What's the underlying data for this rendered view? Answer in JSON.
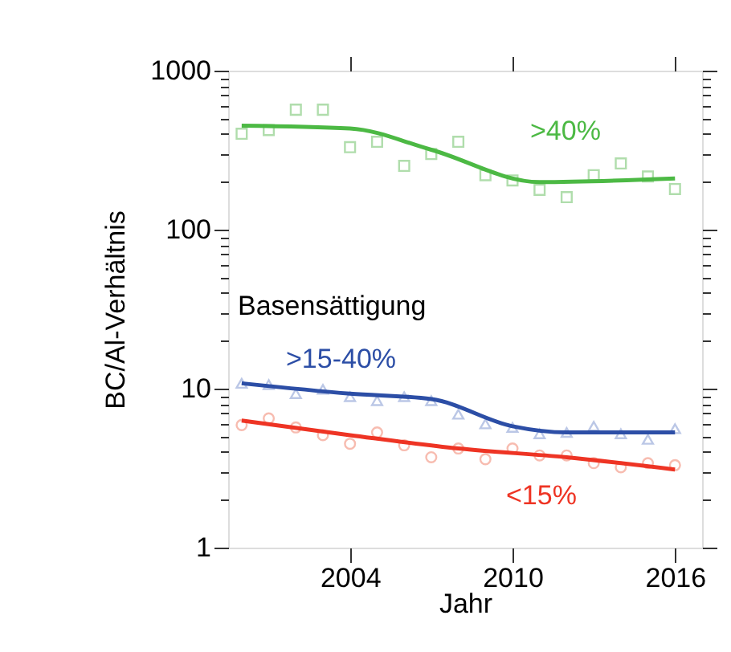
{
  "chart_data": {
    "type": "scatter",
    "xlabel": "Jahr",
    "ylabel": "BC/Al-Verhältnis",
    "legend_title": "Basensättigung",
    "log": "y",
    "grid": false,
    "x": [
      2000,
      2001,
      2002,
      2003,
      2004,
      2005,
      2006,
      2007,
      2008,
      2009,
      2010,
      2011,
      2012,
      2013,
      2014,
      2015,
      2016
    ],
    "xlim": [
      1999.5,
      2017
    ],
    "xticks": [
      2004,
      2010,
      2016
    ],
    "ylim": [
      1,
      1000
    ],
    "yticks": [
      1,
      {
        "value": 2,
        "label": null
      },
      {
        "value": 3,
        "label": null
      },
      {
        "value": 4,
        "label": null
      },
      {
        "value": 5,
        "label": null
      },
      {
        "value": 6,
        "label": null
      },
      {
        "value": 7,
        "label": null
      },
      {
        "value": 8,
        "label": null
      },
      {
        "value": 9,
        "label": null
      },
      10,
      {
        "value": 20,
        "label": null
      },
      {
        "value": 30,
        "label": null
      },
      {
        "value": 40,
        "label": null
      },
      {
        "value": 50,
        "label": null
      },
      {
        "value": 60,
        "label": null
      },
      {
        "value": 70,
        "label": null
      },
      {
        "value": 80,
        "label": null
      },
      {
        "value": 90,
        "label": null
      },
      100,
      {
        "value": 200,
        "label": null
      },
      {
        "value": 300,
        "label": null
      },
      {
        "value": 400,
        "label": null
      },
      {
        "value": 500,
        "label": null
      },
      {
        "value": 600,
        "label": null
      },
      {
        "value": 700,
        "label": null
      },
      {
        "value": 800,
        "label": null
      },
      {
        "value": 900,
        "label": null
      },
      1000
    ],
    "series": [
      {
        "name": ">40%",
        "color": "#8fd08a",
        "marker": "square",
        "values": [
          401,
          423,
          568,
          568,
          330,
          357,
          252,
          299,
          357,
          220,
          204,
          178,
          160,
          220,
          261,
          216,
          180
        ]
      },
      {
        "name": ">15-40%",
        "color": "#9fb0dc",
        "marker": "triangle",
        "values": [
          10.8,
          10.6,
          9.3,
          9.9,
          8.9,
          8.4,
          8.9,
          8.4,
          6.9,
          6.0,
          5.7,
          5.2,
          5.3,
          5.8,
          5.2,
          4.8,
          5.6
        ]
      },
      {
        "name": "<15%",
        "color": "#f5a08f",
        "marker": "circle",
        "values": [
          5.9,
          6.5,
          5.7,
          5.1,
          4.5,
          5.3,
          4.4,
          3.7,
          4.2,
          3.6,
          4.2,
          3.8,
          3.8,
          3.4,
          3.2,
          3.4,
          3.3
        ]
      },
      {
        "type": "line",
        "color": "#4cb944",
        "x": [
          2000,
          2004,
          2007,
          2011,
          2016
        ],
        "values": [
          451,
          433,
          318,
          199,
          210
        ]
      },
      {
        "type": "line",
        "color": "#2c4ea6",
        "x": [
          2000,
          2004,
          2007,
          2010,
          2012,
          2016
        ],
        "values": [
          10.8,
          9.3,
          8.6,
          5.8,
          5.3,
          5.3
        ]
      },
      {
        "type": "line",
        "color": "#ee3424",
        "x": [
          2000,
          2004,
          2008,
          2012,
          2016
        ],
        "values": [
          6.3,
          5.1,
          4.2,
          3.7,
          3.1
        ]
      }
    ]
  }
}
